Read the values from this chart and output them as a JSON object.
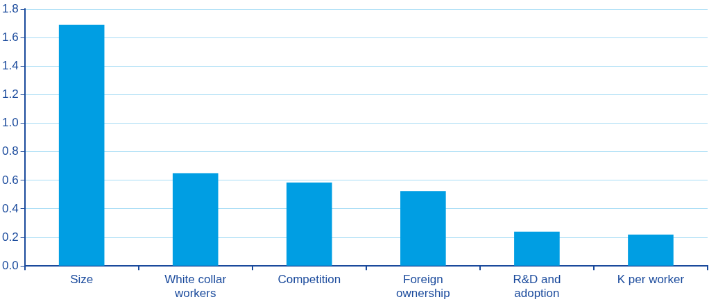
{
  "chart_data": {
    "type": "bar",
    "categories": [
      "Size",
      "White collar workers",
      "Competition",
      "Foreign ownership",
      "R&D and adoption",
      "K per worker"
    ],
    "values": [
      1.69,
      0.65,
      0.585,
      0.525,
      0.24,
      0.22
    ],
    "color": "#009ee3",
    "ylim": [
      0,
      1.8
    ],
    "yticks": [
      {
        "value": 0,
        "label": "0.0"
      },
      {
        "value": 0.2,
        "label": "0.2"
      },
      {
        "value": 0.4,
        "label": "0.4"
      },
      {
        "value": 0.6,
        "label": "0.6"
      },
      {
        "value": 0.8,
        "label": "0.8"
      },
      {
        "value": 1,
        "label": "1.0"
      },
      {
        "value": 1.2,
        "label": "1.2"
      },
      {
        "value": 1.4,
        "label": "1.4"
      },
      {
        "value": 1.6,
        "label": "1.6"
      },
      {
        "value": 1.8,
        "label": "1.8"
      }
    ],
    "grid": "y",
    "legend": false
  }
}
